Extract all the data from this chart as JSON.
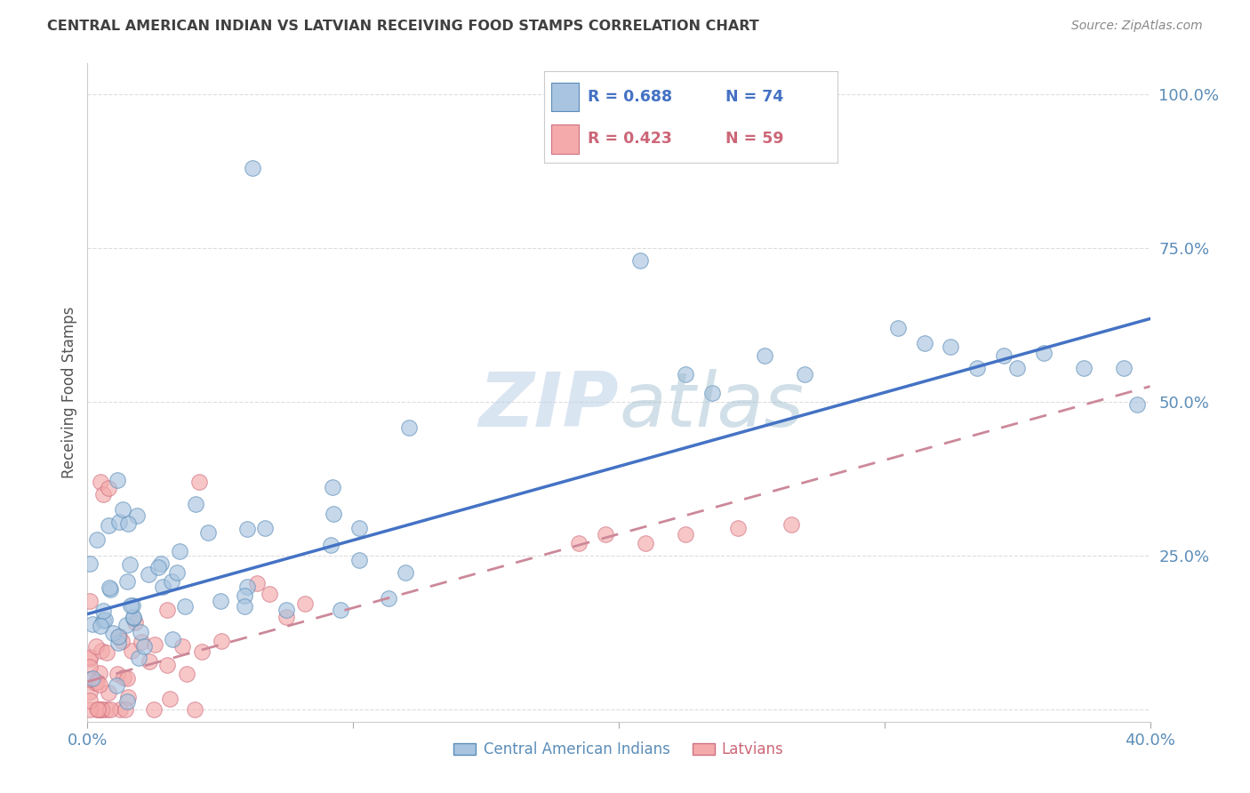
{
  "title": "CENTRAL AMERICAN INDIAN VS LATVIAN RECEIVING FOOD STAMPS CORRELATION CHART",
  "source": "Source: ZipAtlas.com",
  "ylabel": "Receiving Food Stamps",
  "color_blue_fill": "#A8C4E0",
  "color_blue_edge": "#5B8DB8",
  "color_pink_fill": "#F4AAAA",
  "color_pink_edge": "#D07080",
  "color_blue_line": "#4472C4",
  "color_pink_line": "#CC8899",
  "watermark_color": "#C8D8EC",
  "background_color": "#FFFFFF",
  "grid_color": "#DDDDDD",
  "tick_color": "#5B8DB8",
  "title_color": "#404040",
  "source_color": "#888888",
  "ylabel_color": "#555555",
  "xlim": [
    0.0,
    0.4
  ],
  "ylim": [
    -0.02,
    1.05
  ],
  "blue_trendline": [
    [
      0.0,
      0.155
    ],
    [
      0.4,
      0.635
    ]
  ],
  "pink_trendline": [
    [
      0.0,
      0.045
    ],
    [
      0.4,
      0.525
    ]
  ]
}
